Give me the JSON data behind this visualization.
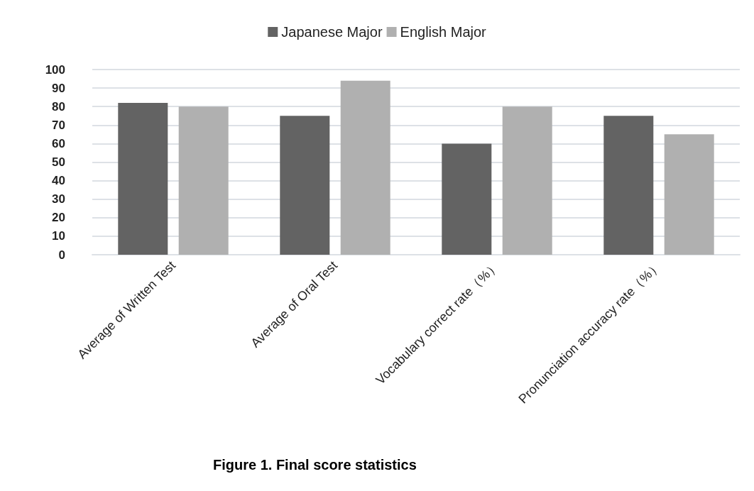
{
  "chart_data": {
    "type": "bar",
    "title": "Figure 1. Final score statistics",
    "categories": [
      "Average of Written Test",
      "Average of Oral Test",
      "Vocabulary correct rate（%）",
      "Pronunciation accuracy rate（%）"
    ],
    "series": [
      {
        "name": "Japanese Major",
        "color": "#636363",
        "values": [
          82,
          75,
          60,
          75
        ]
      },
      {
        "name": "English Major",
        "color": "#b0b0b0",
        "values": [
          80,
          94,
          80,
          65
        ]
      }
    ],
    "ylim": [
      0,
      100
    ],
    "yticks": [
      0,
      10,
      20,
      30,
      40,
      50,
      60,
      70,
      80,
      90,
      100
    ],
    "grid": "y",
    "legend": "top"
  }
}
